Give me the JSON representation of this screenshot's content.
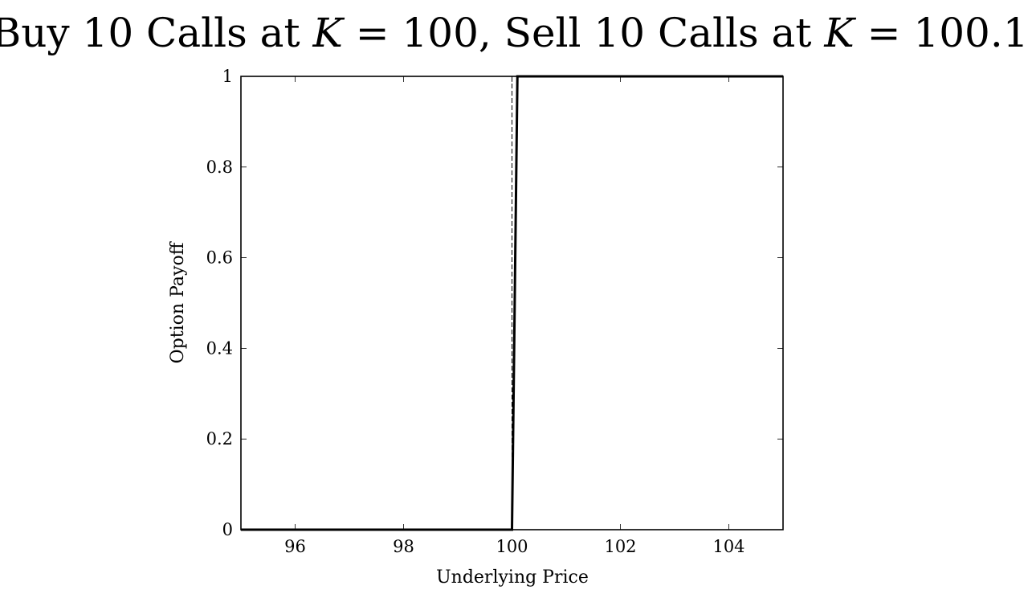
{
  "chart_data": {
    "type": "line",
    "title": {
      "part1": "Buy 10 Calls at ",
      "var1": "K",
      "part2": " = 100, Sell 10 Calls at ",
      "var2": "K",
      "part3": " = 100.1"
    },
    "xlabel": "Underlying Price",
    "ylabel": "Option Payoff",
    "xlim": [
      95,
      105
    ],
    "ylim": [
      0,
      1
    ],
    "x_ticks": [
      96,
      98,
      100,
      102,
      104
    ],
    "y_ticks": [
      0,
      0.2,
      0.4,
      0.6,
      0.8,
      1
    ],
    "grid": false,
    "legend": "none",
    "series": [
      {
        "style": "solid-thick",
        "color": "#000000",
        "x": [
          95,
          100,
          100.1,
          105
        ],
        "y": [
          0,
          0,
          1,
          1
        ]
      },
      {
        "style": "dashed-thin",
        "color": "#000000",
        "x": [
          100,
          100
        ],
        "y": [
          0,
          1
        ]
      }
    ]
  }
}
